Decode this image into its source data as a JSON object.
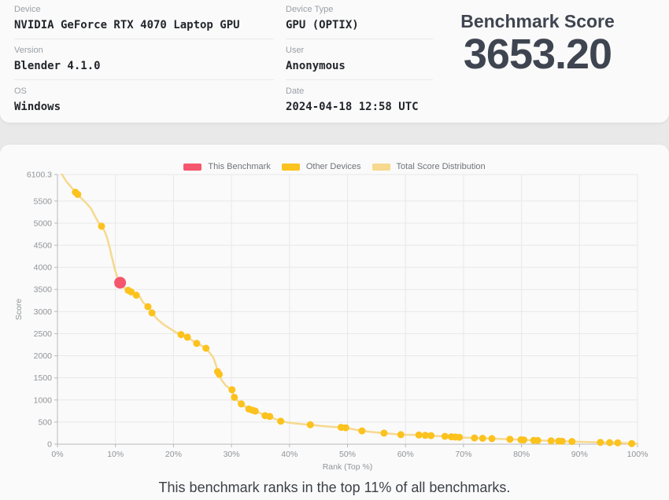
{
  "colors": {
    "page_background": "#e9e9ea",
    "card_background": "#fafafa",
    "this_benchmark_red": "#f4566d",
    "other_devices_yellow": "#fcc21d",
    "distribution_light_yellow": "#f6d98e",
    "gridline": "#e8e8e8",
    "axis_line": "#b8b8b8",
    "tick_text": "#909498"
  },
  "info_card": {
    "fields": [
      {
        "label": "Device",
        "value": "NVIDIA GeForce RTX 4070 Laptop GPU"
      },
      {
        "label": "Version",
        "value": "Blender 4.1.0"
      },
      {
        "label": "OS",
        "value": "Windows"
      },
      {
        "label": "Device Type",
        "value": "GPU (OPTIX)"
      },
      {
        "label": "User",
        "value": "Anonymous"
      },
      {
        "label": "Date",
        "value": "2024-04-18 12:58 UTC"
      }
    ],
    "score_heading": "Benchmark Score",
    "score_value": "3653.20"
  },
  "chart_footer": "This benchmark ranks in the top 11% of all benchmarks.",
  "chart_data": {
    "type": "line",
    "title": "",
    "xlabel": "Rank (Top %)",
    "ylabel": "Score",
    "xlim": [
      0,
      100
    ],
    "ylim": [
      0,
      6100.3
    ],
    "grid": true,
    "legend_position": "top-center",
    "x_ticks": [
      {
        "value": 0,
        "label": "0%"
      },
      {
        "value": 10,
        "label": "10%"
      },
      {
        "value": 20,
        "label": "20%"
      },
      {
        "value": 30,
        "label": "30%"
      },
      {
        "value": 40,
        "label": "40%"
      },
      {
        "value": 50,
        "label": "50%"
      },
      {
        "value": 60,
        "label": "60%"
      },
      {
        "value": 70,
        "label": "70%"
      },
      {
        "value": 80,
        "label": "80%"
      },
      {
        "value": 90,
        "label": "90%"
      },
      {
        "value": 100,
        "label": "100%"
      }
    ],
    "y_ticks": [
      {
        "value": 0,
        "label": "0"
      },
      {
        "value": 500,
        "label": "500"
      },
      {
        "value": 1000,
        "label": "1000"
      },
      {
        "value": 1500,
        "label": "1500"
      },
      {
        "value": 2000,
        "label": "2000"
      },
      {
        "value": 2500,
        "label": "2500"
      },
      {
        "value": 3000,
        "label": "3000"
      },
      {
        "value": 3500,
        "label": "3500"
      },
      {
        "value": 4000,
        "label": "4000"
      },
      {
        "value": 4500,
        "label": "4500"
      },
      {
        "value": 5000,
        "label": "5000"
      },
      {
        "value": 5500,
        "label": "5500"
      },
      {
        "value": 6100.3,
        "label": "6100.3"
      }
    ],
    "legend": [
      {
        "label": "This Benchmark",
        "color": "#f4566d"
      },
      {
        "label": "Other Devices",
        "color": "#fcc21d"
      },
      {
        "label": "Total Score Distribution",
        "color": "#f6d98e"
      }
    ],
    "series": [
      {
        "name": "Total Score Distribution",
        "kind": "line",
        "color": "#f6d98e",
        "line_width": 2.5,
        "points": [
          [
            0.8,
            6100
          ],
          [
            1.5,
            5950
          ],
          [
            2.2,
            5840
          ],
          [
            3.0,
            5720
          ],
          [
            3.5,
            5640
          ],
          [
            4.2,
            5550
          ],
          [
            5.0,
            5450
          ],
          [
            5.8,
            5330
          ],
          [
            6.3,
            5200
          ],
          [
            7.0,
            5030
          ],
          [
            7.6,
            4930
          ],
          [
            8.2,
            4800
          ],
          [
            8.6,
            4650
          ],
          [
            9.0,
            4450
          ],
          [
            9.4,
            4220
          ],
          [
            9.9,
            3950
          ],
          [
            10.4,
            3750
          ],
          [
            10.8,
            3653
          ],
          [
            11.3,
            3560
          ],
          [
            12.0,
            3500
          ],
          [
            12.5,
            3460
          ],
          [
            13.0,
            3420
          ],
          [
            13.6,
            3370
          ],
          [
            14.2,
            3330
          ],
          [
            14.8,
            3200
          ],
          [
            15.6,
            3110
          ],
          [
            16.3,
            2970
          ],
          [
            17.2,
            2830
          ],
          [
            18.2,
            2720
          ],
          [
            19.2,
            2630
          ],
          [
            20.3,
            2540
          ],
          [
            21.3,
            2480
          ],
          [
            22.4,
            2420
          ],
          [
            23.2,
            2350
          ],
          [
            24.0,
            2280
          ],
          [
            25.0,
            2220
          ],
          [
            25.6,
            2170
          ],
          [
            26.3,
            2060
          ],
          [
            26.9,
            1950
          ],
          [
            27.4,
            1760
          ],
          [
            27.8,
            1590
          ],
          [
            28.3,
            1450
          ],
          [
            29.0,
            1330
          ],
          [
            29.6,
            1270
          ],
          [
            30.1,
            1230
          ],
          [
            30.4,
            1070
          ],
          [
            31.0,
            990
          ],
          [
            31.7,
            910
          ],
          [
            32.5,
            840
          ],
          [
            33.3,
            790
          ],
          [
            34.2,
            745
          ],
          [
            35.0,
            700
          ],
          [
            35.8,
            645
          ],
          [
            36.5,
            630
          ],
          [
            37.5,
            570
          ],
          [
            38.5,
            520
          ],
          [
            39.6,
            495
          ],
          [
            41.0,
            470
          ],
          [
            42.5,
            450
          ],
          [
            43.6,
            440
          ],
          [
            45.5,
            410
          ],
          [
            47.0,
            395
          ],
          [
            48.9,
            380
          ],
          [
            50.5,
            350
          ],
          [
            52.5,
            300
          ],
          [
            54.5,
            270
          ],
          [
            56.3,
            250
          ],
          [
            58.0,
            230
          ],
          [
            59.2,
            215
          ],
          [
            61.0,
            212
          ],
          [
            62.3,
            208
          ],
          [
            63.4,
            200
          ],
          [
            64.3,
            195
          ],
          [
            65.5,
            185
          ],
          [
            66.8,
            178
          ],
          [
            67.9,
            168
          ],
          [
            68.8,
            160
          ],
          [
            70.0,
            150
          ],
          [
            71.9,
            140
          ],
          [
            73.3,
            134
          ],
          [
            74.9,
            126
          ],
          [
            76.5,
            118
          ],
          [
            78.0,
            110
          ],
          [
            79.9,
            99
          ],
          [
            80.9,
            94
          ],
          [
            82.1,
            88
          ],
          [
            83.4,
            82
          ],
          [
            85.1,
            75
          ],
          [
            86.4,
            70
          ],
          [
            88.7,
            60
          ],
          [
            90.5,
            52
          ],
          [
            92.0,
            46
          ],
          [
            93.6,
            41
          ],
          [
            95.2,
            35
          ],
          [
            96.6,
            30
          ],
          [
            98.0,
            22
          ],
          [
            99.0,
            15
          ],
          [
            100.0,
            9
          ]
        ]
      },
      {
        "name": "Other Devices",
        "kind": "scatter",
        "color": "#fcc21d",
        "marker_radius": 4.5,
        "points": [
          [
            3.1,
            5700
          ],
          [
            3.5,
            5650
          ],
          [
            7.6,
            4930
          ],
          [
            12.2,
            3480
          ],
          [
            12.7,
            3445
          ],
          [
            13.6,
            3370
          ],
          [
            15.6,
            3110
          ],
          [
            16.3,
            2970
          ],
          [
            21.3,
            2480
          ],
          [
            22.4,
            2420
          ],
          [
            24.0,
            2280
          ],
          [
            25.6,
            2170
          ],
          [
            27.6,
            1640
          ],
          [
            27.9,
            1580
          ],
          [
            30.1,
            1230
          ],
          [
            30.5,
            1060
          ],
          [
            31.7,
            910
          ],
          [
            33.0,
            795
          ],
          [
            33.6,
            770
          ],
          [
            34.1,
            748
          ],
          [
            35.8,
            645
          ],
          [
            36.6,
            628
          ],
          [
            38.5,
            520
          ],
          [
            43.6,
            440
          ],
          [
            48.9,
            380
          ],
          [
            49.7,
            371
          ],
          [
            52.5,
            300
          ],
          [
            56.3,
            250
          ],
          [
            59.2,
            215
          ],
          [
            62.3,
            208
          ],
          [
            63.4,
            200
          ],
          [
            64.4,
            194
          ],
          [
            66.8,
            178
          ],
          [
            67.9,
            168
          ],
          [
            68.6,
            162
          ],
          [
            69.3,
            156
          ],
          [
            71.9,
            140
          ],
          [
            73.3,
            134
          ],
          [
            74.9,
            126
          ],
          [
            78.0,
            110
          ],
          [
            79.9,
            99
          ],
          [
            80.4,
            96
          ],
          [
            82.1,
            88
          ],
          [
            82.8,
            84
          ],
          [
            85.1,
            75
          ],
          [
            86.4,
            70
          ],
          [
            87.0,
            67
          ],
          [
            88.7,
            60
          ],
          [
            93.6,
            41
          ],
          [
            95.2,
            35
          ],
          [
            96.6,
            30
          ],
          [
            99.0,
            15
          ]
        ]
      },
      {
        "name": "This Benchmark",
        "kind": "scatter",
        "color": "#f4566d",
        "marker_radius": 7.5,
        "points": [
          [
            10.8,
            3653.2
          ]
        ]
      }
    ]
  }
}
